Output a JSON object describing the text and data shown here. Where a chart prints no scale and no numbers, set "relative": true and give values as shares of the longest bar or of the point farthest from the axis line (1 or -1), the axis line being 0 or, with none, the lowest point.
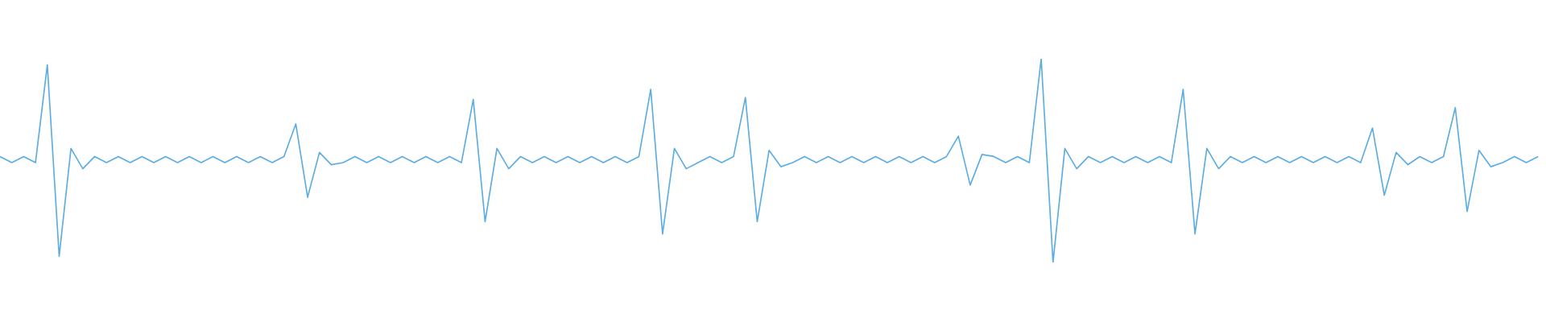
{
  "chart_data": {
    "type": "line",
    "relative": true,
    "color": "#5dade2",
    "categories": [
      null,
      null,
      null,
      null,
      null,
      null,
      null,
      null,
      null,
      null,
      null,
      null,
      null,
      null,
      null,
      null,
      null,
      null,
      null,
      null,
      null,
      null,
      null,
      null,
      null,
      null,
      null,
      null,
      null,
      null,
      null,
      null,
      null,
      null,
      null,
      null,
      null,
      null,
      null,
      null,
      null,
      null,
      null,
      null,
      null,
      null,
      null,
      null,
      null,
      null,
      null,
      null,
      null,
      null,
      null,
      null,
      null,
      null,
      null,
      null,
      null,
      null,
      null,
      null,
      null,
      null,
      null,
      null,
      null,
      null,
      null,
      null,
      null,
      null,
      null,
      null,
      null,
      null,
      null,
      null,
      null,
      null,
      null,
      null,
      null,
      null,
      null,
      null,
      null,
      null,
      null,
      null,
      null,
      null,
      null,
      null,
      null,
      null,
      null,
      null,
      null,
      null,
      null,
      null,
      null,
      null,
      null,
      null,
      null,
      null,
      null,
      null,
      null,
      null,
      null,
      null,
      null,
      null,
      null,
      null,
      null,
      null,
      null,
      null,
      null,
      null,
      null,
      null,
      null,
      null,
      null
    ],
    "values": [
      0.52,
      0.49,
      0.52,
      0.49,
      0.97,
      0.03,
      0.56,
      0.46,
      0.52,
      0.49,
      0.52,
      0.49,
      0.52,
      0.49,
      0.52,
      0.49,
      0.52,
      0.49,
      0.52,
      0.49,
      0.52,
      0.49,
      0.52,
      0.49,
      0.52,
      0.68,
      0.32,
      0.54,
      0.48,
      0.49,
      0.52,
      0.49,
      0.52,
      0.49,
      0.52,
      0.49,
      0.52,
      0.49,
      0.52,
      0.49,
      0.8,
      0.2,
      0.56,
      0.46,
      0.52,
      0.49,
      0.52,
      0.49,
      0.52,
      0.49,
      0.52,
      0.49,
      0.52,
      0.49,
      0.52,
      0.85,
      0.14,
      0.56,
      0.46,
      0.49,
      0.52,
      0.49,
      0.52,
      0.81,
      0.2,
      0.55,
      0.47,
      0.49,
      0.52,
      0.49,
      0.52,
      0.49,
      0.52,
      0.49,
      0.52,
      0.49,
      0.52,
      0.49,
      0.52,
      0.49,
      0.52,
      0.62,
      0.38,
      0.53,
      0.52,
      0.49,
      0.52,
      0.49,
      1.0,
      0.0,
      0.56,
      0.46,
      0.52,
      0.49,
      0.52,
      0.49,
      0.52,
      0.49,
      0.52,
      0.49,
      0.85,
      0.14,
      0.56,
      0.46,
      0.52,
      0.49,
      0.52,
      0.49,
      0.52,
      0.49,
      0.52,
      0.49,
      0.52,
      0.49,
      0.52,
      0.49,
      0.66,
      0.33,
      0.54,
      0.48,
      0.52,
      0.49,
      0.52,
      0.76,
      0.25,
      0.55,
      0.47,
      0.49,
      0.52,
      0.49,
      0.52
    ]
  }
}
